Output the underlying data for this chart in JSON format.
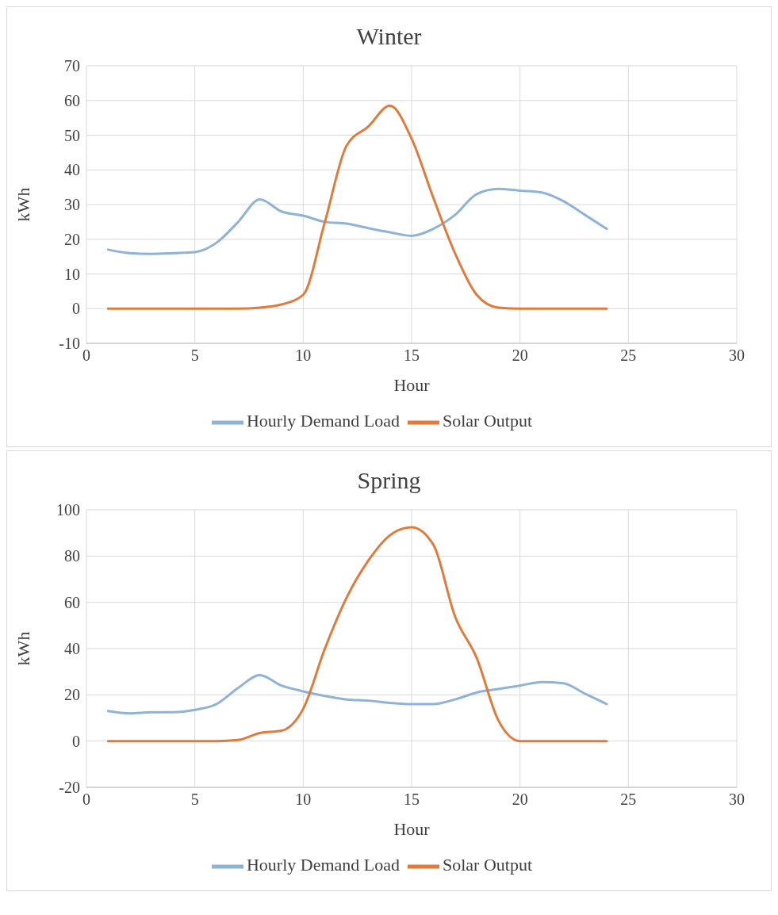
{
  "chart_data": [
    {
      "type": "line",
      "title": "Winter",
      "xlabel": "Hour",
      "ylabel": "kWh",
      "x": [
        1,
        2,
        3,
        4,
        5,
        6,
        7,
        8,
        9,
        10,
        11,
        12,
        13,
        14,
        15,
        16,
        17,
        18,
        19,
        20,
        21,
        22,
        23,
        24
      ],
      "series": [
        {
          "name": "Hourly Demand Load",
          "color": "#8fb3d5",
          "values": [
            17,
            16,
            15.8,
            16,
            16.3,
            19,
            25,
            31.5,
            28,
            26.8,
            25,
            24.5,
            23.2,
            22,
            21,
            23,
            27,
            33,
            34.5,
            34,
            33.5,
            31,
            27,
            23
          ]
        },
        {
          "name": "Solar Output",
          "color": "#e17b3c",
          "values": [
            0,
            0,
            0,
            0,
            0,
            0,
            0,
            0.3,
            1.2,
            4,
            25,
            47,
            52.5,
            58.5,
            49,
            32,
            16,
            4,
            0.3,
            0,
            0,
            0,
            0,
            0
          ]
        }
      ],
      "xlim": [
        0,
        30
      ],
      "xticks": [
        0,
        5,
        10,
        15,
        20,
        25,
        30
      ],
      "ylim": [
        -10,
        70
      ],
      "yticks": [
        -10,
        0,
        10,
        20,
        30,
        40,
        50,
        60,
        70
      ],
      "grid": true,
      "legend": "bottom",
      "marker": "none",
      "line_style": "solid"
    },
    {
      "type": "line",
      "title": "Spring",
      "xlabel": "Hour",
      "ylabel": "kWh",
      "x": [
        1,
        2,
        3,
        4,
        5,
        6,
        7,
        8,
        9,
        10,
        11,
        12,
        13,
        14,
        15,
        16,
        17,
        18,
        19,
        20,
        21,
        22,
        23,
        24
      ],
      "series": [
        {
          "name": "Hourly Demand Load",
          "color": "#8fb3d5",
          "values": [
            13,
            12,
            12.5,
            12.5,
            13.5,
            16,
            23,
            28.5,
            24,
            21.5,
            19.5,
            18,
            17.5,
            16.5,
            16,
            16,
            18,
            21,
            22.5,
            24,
            25.5,
            25,
            20.5,
            16
          ]
        },
        {
          "name": "Solar Output",
          "color": "#e17b3c",
          "values": [
            0,
            0,
            0,
            0,
            0,
            0,
            0.5,
            3.5,
            4.5,
            14,
            40,
            62,
            78,
            89,
            92.5,
            85,
            54,
            36,
            9,
            0,
            0,
            0,
            0,
            0
          ]
        }
      ],
      "xlim": [
        0,
        30
      ],
      "xticks": [
        0,
        5,
        10,
        15,
        20,
        25,
        30
      ],
      "ylim": [
        -20,
        100
      ],
      "yticks": [
        -20,
        0,
        20,
        40,
        60,
        80,
        100
      ],
      "grid": true,
      "legend": "bottom",
      "marker": "none",
      "line_style": "solid"
    }
  ]
}
